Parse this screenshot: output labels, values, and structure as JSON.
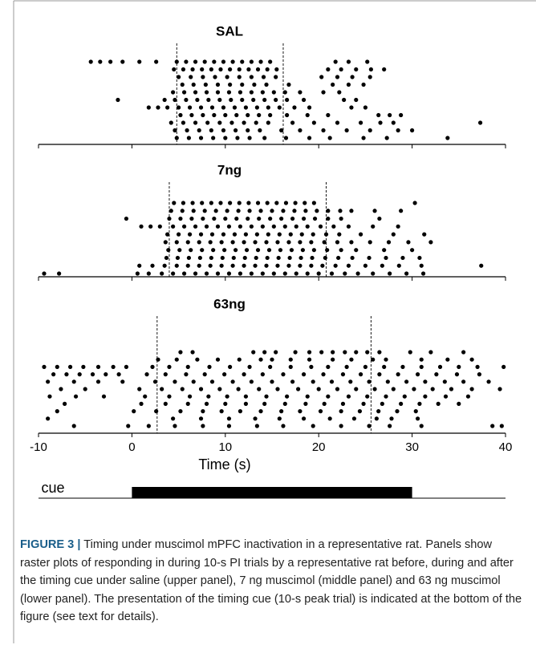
{
  "chart_data": [
    {
      "type": "raster",
      "title": "SAL",
      "xlim": [
        -10,
        40
      ],
      "xticks": [
        -10,
        0,
        10,
        20,
        30,
        40
      ],
      "tick_labels": false,
      "markers": [
        4.8,
        16.2
      ],
      "rows": [
        [
          -4.4,
          -3.4,
          -2.3,
          -1.0,
          0.8,
          2.6,
          4.8,
          5.8,
          6.8,
          7.8,
          8.8,
          9.8,
          10.8,
          11.8,
          12.8,
          13.8,
          14.8,
          21.8,
          23.2,
          25.2
        ],
        [
          4.5,
          5.5,
          6.5,
          7.5,
          8.5,
          9.5,
          10.5,
          11.5,
          12.5,
          13.5,
          14.5,
          15.5,
          21.0,
          22.4,
          24.0,
          25.6,
          27.0
        ],
        [
          5.0,
          6.3,
          7.6,
          8.9,
          10.2,
          11.5,
          12.8,
          14.1,
          15.4,
          20.3,
          22.0,
          23.6,
          25.5
        ],
        [
          5.4,
          6.6,
          7.9,
          9.2,
          10.5,
          11.8,
          13.1,
          14.4,
          16.8,
          21.5,
          23.2,
          24.8
        ],
        [
          4.4,
          5.6,
          6.8,
          8.0,
          9.2,
          10.4,
          11.6,
          12.8,
          14.0,
          15.2,
          16.4,
          18.0,
          20.5,
          22.2
        ],
        [
          -1.5,
          3.5,
          4.6,
          5.8,
          7.0,
          8.2,
          9.4,
          10.6,
          11.8,
          13.0,
          14.2,
          15.4,
          16.6,
          18.4,
          22.7,
          24.0
        ],
        [
          1.8,
          2.8,
          3.8,
          5.0,
          6.2,
          7.4,
          8.6,
          9.8,
          11.0,
          12.2,
          13.4,
          14.6,
          15.8,
          17.4,
          19.0,
          23.5,
          25.0
        ],
        [
          5.2,
          6.4,
          7.6,
          8.8,
          10.0,
          11.2,
          12.4,
          13.6,
          14.8,
          16.6,
          18.8,
          21.0,
          26.4,
          27.6,
          28.8
        ],
        [
          4.2,
          5.5,
          6.8,
          8.1,
          9.4,
          10.7,
          12.0,
          13.3,
          14.6,
          17.2,
          19.5,
          22.0,
          24.5,
          26.6,
          28.0,
          37.3
        ],
        [
          4.6,
          5.9,
          7.2,
          8.5,
          9.8,
          11.1,
          12.4,
          13.7,
          16.0,
          18.0,
          20.5,
          23.0,
          25.5,
          28.5,
          30.0
        ],
        [
          4.8,
          6.1,
          7.4,
          8.7,
          10.0,
          11.3,
          12.6,
          14.2,
          16.5,
          19.0,
          21.2,
          24.8,
          27.3,
          33.8
        ]
      ]
    },
    {
      "type": "raster",
      "title": "7ng",
      "xlim": [
        -10,
        40
      ],
      "xticks": [
        -10,
        0,
        10,
        20,
        30,
        40
      ],
      "tick_labels": false,
      "markers": [
        4.0,
        20.8
      ],
      "rows": [
        [
          4.5,
          5.5,
          6.5,
          7.5,
          8.5,
          9.5,
          10.5,
          11.5,
          12.5,
          13.5,
          14.5,
          15.5,
          16.5,
          17.5,
          18.5,
          19.5,
          30.3
        ],
        [
          4.2,
          5.4,
          6.6,
          7.8,
          9.0,
          10.2,
          11.4,
          12.6,
          13.8,
          15.0,
          16.2,
          17.4,
          18.6,
          19.8,
          21.0,
          22.3,
          23.5,
          26.0,
          28.8
        ],
        [
          -0.6,
          4.0,
          5.2,
          6.4,
          7.6,
          8.8,
          10.0,
          11.2,
          12.4,
          13.6,
          14.8,
          16.0,
          17.2,
          18.4,
          19.6,
          21.0,
          22.4,
          26.5
        ],
        [
          1.0,
          2.0,
          3.0,
          4.4,
          5.6,
          6.8,
          8.0,
          9.2,
          10.4,
          11.6,
          12.8,
          14.0,
          15.2,
          16.4,
          17.6,
          18.8,
          20.2,
          21.6,
          23.2,
          25.8,
          28.5
        ],
        [
          3.8,
          5.0,
          6.2,
          7.4,
          8.6,
          9.8,
          11.0,
          12.2,
          13.4,
          14.6,
          15.8,
          17.0,
          18.2,
          19.4,
          20.8,
          22.2,
          24.5,
          28.0,
          31.3
        ],
        [
          3.6,
          4.8,
          6.0,
          7.2,
          8.4,
          9.6,
          10.8,
          12.0,
          13.2,
          14.4,
          15.6,
          16.8,
          18.0,
          19.2,
          20.6,
          22.0,
          23.5,
          25.5,
          27.5,
          29.6,
          32.0
        ],
        [
          3.9,
          5.1,
          6.3,
          7.5,
          8.7,
          9.9,
          11.1,
          12.3,
          13.5,
          14.7,
          15.9,
          17.1,
          18.3,
          19.5,
          20.9,
          22.4,
          24.0,
          27.0,
          30.0
        ],
        [
          3.7,
          4.9,
          6.1,
          7.3,
          8.5,
          9.7,
          10.9,
          12.1,
          13.3,
          14.5,
          15.7,
          16.9,
          18.1,
          19.3,
          20.7,
          22.1,
          23.6,
          25.4,
          27.2,
          29.0,
          30.8
        ],
        [
          0.8,
          2.2,
          3.5,
          4.8,
          6.0,
          7.2,
          8.4,
          9.6,
          10.8,
          12.0,
          13.2,
          14.4,
          15.6,
          16.8,
          18.0,
          19.2,
          20.4,
          21.8,
          23.2,
          25.0,
          26.8,
          28.6,
          31.0,
          37.4
        ],
        [
          -9.4,
          -7.8,
          0.6,
          1.8,
          3.2,
          4.4,
          5.6,
          6.8,
          8.0,
          9.2,
          10.4,
          11.6,
          12.8,
          14.0,
          15.2,
          16.4,
          17.6,
          18.8,
          20.0,
          21.4,
          22.8,
          24.2,
          25.8,
          27.6,
          29.4,
          31.2
        ]
      ]
    },
    {
      "type": "raster",
      "title": "63ng",
      "xlabel": "Time (s)",
      "xlim": [
        -10,
        40
      ],
      "xticks": [
        -10,
        0,
        10,
        20,
        30,
        40
      ],
      "tick_labels": true,
      "markers": [
        2.7,
        25.6
      ],
      "rows": [
        [
          5.2,
          6.5,
          13.0,
          14.2,
          15.4,
          17.5,
          19.0,
          20.3,
          21.5,
          22.8,
          24.0,
          25.2,
          26.5,
          29.8,
          32.0,
          35.5
        ],
        [
          2.8,
          4.8,
          7.0,
          9.2,
          11.5,
          13.8,
          15.0,
          17.0,
          19.0,
          21.5,
          23.5,
          25.8,
          27.2,
          31.0,
          33.8,
          36.4
        ],
        [
          -9.4,
          -8.0,
          -6.6,
          -5.2,
          -3.6,
          -2.0,
          -0.6,
          2.2,
          4.0,
          6.0,
          8.3,
          10.5,
          12.6,
          14.8,
          17.0,
          19.2,
          21.0,
          23.0,
          25.0,
          27.0,
          29.0,
          31.0,
          33.0,
          35.0,
          37.0,
          39.8
        ],
        [
          -8.4,
          -7.0,
          -5.6,
          -4.2,
          -2.8,
          -1.4,
          1.6,
          3.6,
          5.8,
          7.8,
          9.9,
          12.0,
          14.0,
          16.2,
          18.4,
          20.5,
          22.6,
          24.5,
          26.5,
          28.5,
          30.6,
          32.6,
          34.8,
          37.2
        ],
        [
          -9.0,
          -6.2,
          -3.6,
          -1.0,
          2.5,
          4.6,
          6.6,
          8.6,
          10.8,
          12.8,
          15.0,
          17.2,
          19.4,
          21.4,
          23.4,
          25.4,
          27.4,
          29.4,
          31.4,
          33.5,
          35.5,
          38.2
        ],
        [
          -7.6,
          -5.0,
          0.8,
          3.2,
          5.4,
          7.4,
          9.4,
          11.4,
          13.6,
          15.6,
          17.8,
          20.0,
          22.0,
          24.0,
          26.0,
          28.0,
          30.2,
          32.2,
          34.2,
          36.4,
          39.4
        ],
        [
          -8.8,
          -6.0,
          -3.0,
          1.4,
          4.0,
          6.2,
          8.2,
          10.2,
          12.2,
          14.4,
          16.6,
          18.8,
          21.0,
          23.2,
          25.2,
          27.2,
          29.2,
          31.4,
          33.6,
          36.0
        ],
        [
          -7.2,
          1.0,
          3.6,
          6.0,
          8.0,
          10.0,
          12.2,
          14.2,
          16.4,
          18.6,
          20.6,
          22.6,
          24.8,
          26.8,
          28.8,
          30.8,
          32.8,
          35.0
        ],
        [
          -8.0,
          0.2,
          2.6,
          5.2,
          7.6,
          9.6,
          11.6,
          13.8,
          16.0,
          18.0,
          20.2,
          22.4,
          24.4,
          26.4,
          28.4,
          30.4
        ],
        [
          -9.0,
          4.4,
          7.4,
          10.4,
          13.2,
          15.8,
          18.4,
          21.2,
          23.8,
          26.2,
          27.8,
          30.6
        ],
        [
          -6.2,
          -0.4,
          1.8,
          4.6,
          7.6,
          10.4,
          13.4,
          16.2,
          19.4,
          22.4,
          25.4,
          27.6,
          31.0,
          38.6,
          39.6
        ]
      ]
    }
  ],
  "cue": {
    "label": "cue",
    "start": 0,
    "end": 30
  },
  "caption": {
    "label": "FIGURE 3 |",
    "text": "Timing under muscimol mPFC inactivation in a representative rat. Panels show raster plots of responding in during 10-s PI trials by a representative rat before, during and after the timing cue under saline (upper panel), 7 ng muscimol (middle panel) and 63 ng muscimol (lower panel). The presentation of the timing cue (10-s peak trial) is indicated at the bottom of the figure (see text for details)."
  }
}
